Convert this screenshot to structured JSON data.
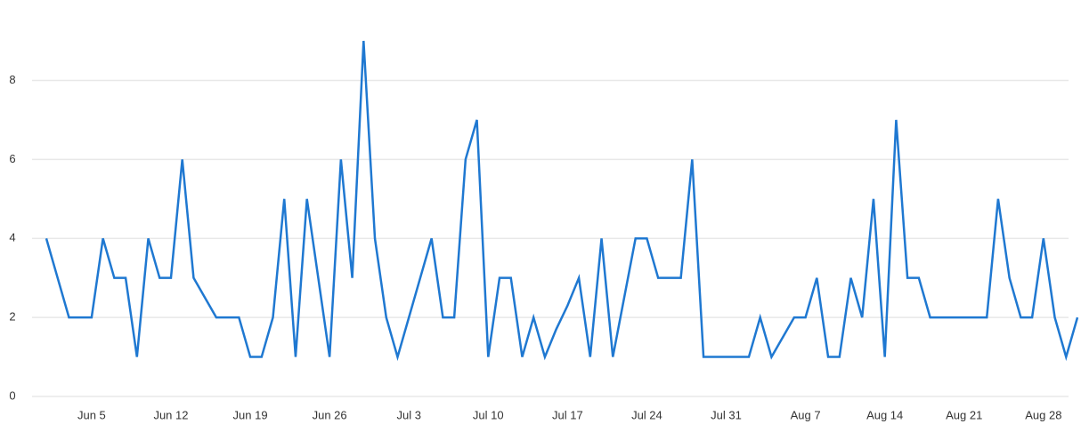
{
  "chart_data": {
    "type": "line",
    "categories": [
      null,
      null,
      null,
      null,
      "Jun 5",
      null,
      null,
      null,
      null,
      null,
      null,
      "Jun 12",
      null,
      null,
      null,
      null,
      null,
      null,
      "Jun 19",
      null,
      null,
      null,
      null,
      null,
      null,
      "Jun 26",
      null,
      null,
      null,
      null,
      null,
      null,
      "Jul 3",
      null,
      null,
      null,
      null,
      null,
      null,
      "Jul 10",
      null,
      null,
      null,
      null,
      null,
      null,
      "Jul 17",
      null,
      null,
      null,
      null,
      null,
      null,
      "Jul 24",
      null,
      null,
      null,
      null,
      null,
      null,
      "Jul 31",
      null,
      null,
      null,
      null,
      null,
      null,
      "Aug 7",
      null,
      null,
      null,
      null,
      null,
      null,
      "Aug 14",
      null,
      null,
      null,
      null,
      null,
      null,
      "Aug 21",
      null,
      null,
      null,
      null,
      null,
      null,
      "Aug 28",
      null,
      null,
      null
    ],
    "values": [
      4,
      3,
      2,
      2,
      2,
      4,
      3,
      3,
      1,
      4,
      3,
      3,
      6,
      3,
      2.5,
      2,
      2,
      2,
      1,
      1,
      2,
      5,
      1,
      5,
      3,
      1,
      6,
      3,
      9,
      4,
      2,
      1,
      2,
      3,
      4,
      2,
      2,
      6,
      7,
      1,
      3,
      3,
      1,
      2,
      1,
      1.7,
      2.3,
      3,
      1,
      4,
      1,
      2.5,
      4,
      4,
      3,
      3,
      3,
      6,
      1,
      1,
      1,
      1,
      1,
      2,
      1,
      1.5,
      2,
      2,
      3,
      1,
      1,
      3,
      2,
      5,
      1,
      7,
      3,
      3,
      2,
      2,
      2,
      2,
      2,
      2,
      5,
      3,
      2,
      2,
      4,
      2,
      1,
      2
    ],
    "color": "#1f78d1",
    "ylim": [
      0,
      9
    ],
    "yticks": [
      0,
      2,
      4,
      6,
      8
    ],
    "grid": true
  }
}
